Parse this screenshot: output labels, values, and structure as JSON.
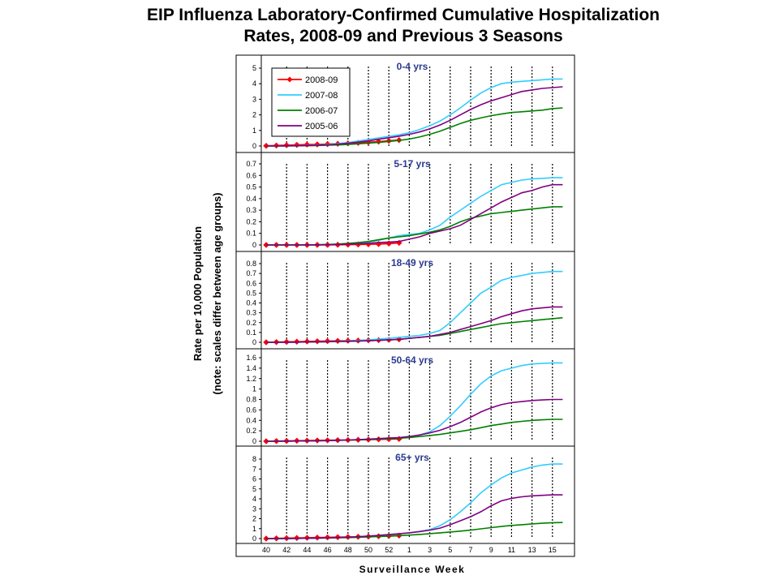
{
  "title_lines": [
    "EIP Influenza Laboratory-Confirmed Cumulative Hospitalization",
    "Rates, 2008-09 and Previous 3 Seasons"
  ],
  "chart_data": {
    "type": "line",
    "ylabel_lines": [
      "Rate per 10,000 Population",
      "(note: scales differ between age groups)"
    ],
    "xlabel": "Surveillance Week",
    "x_tick_labels": [
      "40",
      "42",
      "44",
      "46",
      "48",
      "50",
      "52",
      "1",
      "3",
      "5",
      "7",
      "9",
      "11",
      "13",
      "15"
    ],
    "weeks": [
      "40",
      "41",
      "42",
      "43",
      "44",
      "45",
      "46",
      "47",
      "48",
      "49",
      "50",
      "51",
      "52",
      "53",
      "1",
      "2",
      "3",
      "4",
      "5",
      "6",
      "7",
      "8",
      "9",
      "10",
      "11",
      "12",
      "13",
      "14",
      "15",
      "16"
    ],
    "legend": [
      {
        "name": "2008-09",
        "color": "#ff0000"
      },
      {
        "name": "2007-08",
        "color": "#33ccff"
      },
      {
        "name": "2006-07",
        "color": "#008000"
      },
      {
        "name": "2005-06",
        "color": "#800080"
      }
    ],
    "panels": [
      {
        "label": "0-4 yrs",
        "y_ticks": [
          "0",
          "1",
          "2",
          "3",
          "4",
          "5"
        ],
        "ylim": [
          0,
          5
        ],
        "series": [
          {
            "name": "2008-09",
            "values": [
              0.01,
              0.03,
              0.05,
              0.07,
              0.09,
              0.1,
              0.12,
              0.14,
              0.17,
              0.2,
              0.24,
              0.28,
              0.33,
              0.38
            ]
          },
          {
            "name": "2007-08",
            "values": [
              0,
              0,
              0.01,
              0.02,
              0.04,
              0.06,
              0.1,
              0.15,
              0.22,
              0.32,
              0.42,
              0.52,
              0.62,
              0.72,
              0.85,
              1.05,
              1.3,
              1.6,
              2.0,
              2.45,
              2.95,
              3.4,
              3.75,
              4.0,
              4.1,
              4.15,
              4.2,
              4.25,
              4.3,
              4.3
            ]
          },
          {
            "name": "2006-07",
            "values": [
              0,
              0,
              0,
              0.01,
              0.02,
              0.03,
              0.05,
              0.07,
              0.1,
              0.14,
              0.18,
              0.23,
              0.29,
              0.36,
              0.45,
              0.58,
              0.75,
              0.95,
              1.2,
              1.45,
              1.65,
              1.8,
              1.95,
              2.05,
              2.15,
              2.2,
              2.25,
              2.3,
              2.4,
              2.45
            ]
          },
          {
            "name": "2005-06",
            "values": [
              0,
              0,
              0.01,
              0.02,
              0.03,
              0.05,
              0.08,
              0.12,
              0.18,
              0.25,
              0.33,
              0.43,
              0.53,
              0.63,
              0.75,
              0.9,
              1.1,
              1.35,
              1.65,
              2.0,
              2.35,
              2.65,
              2.9,
              3.1,
              3.3,
              3.5,
              3.6,
              3.7,
              3.75,
              3.8
            ]
          }
        ]
      },
      {
        "label": "5-17 yrs",
        "y_ticks": [
          "0",
          "0.1",
          "0.2",
          "0.3",
          "0.4",
          "0.5",
          "0.6",
          "0.7"
        ],
        "ylim": [
          0,
          0.7
        ],
        "series": [
          {
            "name": "2008-09",
            "values": [
              0,
              0,
              0,
              0,
              0,
              0.001,
              0.001,
              0.002,
              0.003,
              0.004,
              0.006,
              0.008,
              0.012,
              0.018
            ]
          },
          {
            "name": "2007-08",
            "values": [
              0,
              0,
              0,
              0,
              0,
              0.002,
              0.004,
              0.007,
              0.011,
              0.016,
              0.025,
              0.04,
              0.06,
              0.08,
              0.09,
              0.1,
              0.13,
              0.17,
              0.24,
              0.3,
              0.36,
              0.42,
              0.47,
              0.52,
              0.54,
              0.56,
              0.57,
              0.575,
              0.58,
              0.58
            ]
          },
          {
            "name": "2006-07",
            "values": [
              0,
              0,
              0,
              0,
              0.001,
              0.002,
              0.004,
              0.008,
              0.013,
              0.02,
              0.03,
              0.045,
              0.06,
              0.07,
              0.08,
              0.095,
              0.11,
              0.13,
              0.16,
              0.2,
              0.23,
              0.25,
              0.27,
              0.28,
              0.29,
              0.3,
              0.31,
              0.32,
              0.33,
              0.33
            ]
          },
          {
            "name": "2005-06",
            "values": [
              0,
              0,
              0,
              0,
              0,
              0.001,
              0.002,
              0.004,
              0.007,
              0.01,
              0.015,
              0.02,
              0.025,
              0.03,
              0.05,
              0.07,
              0.1,
              0.12,
              0.14,
              0.17,
              0.22,
              0.27,
              0.32,
              0.37,
              0.41,
              0.45,
              0.47,
              0.5,
              0.52,
              0.52
            ]
          }
        ]
      },
      {
        "label": "18-49 yrs",
        "y_ticks": [
          "0",
          "0.1",
          "0.2",
          "0.3",
          "0.4",
          "0.5",
          "0.6",
          "0.7",
          "0.8"
        ],
        "ylim": [
          0,
          0.8
        ],
        "series": [
          {
            "name": "2008-09",
            "values": [
              0,
              0.002,
              0.004,
              0.006,
              0.008,
              0.01,
              0.012,
              0.014,
              0.016,
              0.018,
              0.02,
              0.022,
              0.025,
              0.03
            ]
          },
          {
            "name": "2007-08",
            "values": [
              0,
              0,
              0.001,
              0.002,
              0.003,
              0.005,
              0.007,
              0.01,
              0.014,
              0.019,
              0.025,
              0.032,
              0.04,
              0.05,
              0.06,
              0.07,
              0.09,
              0.12,
              0.2,
              0.3,
              0.4,
              0.5,
              0.56,
              0.63,
              0.66,
              0.68,
              0.7,
              0.71,
              0.72,
              0.72
            ]
          },
          {
            "name": "2006-07",
            "values": [
              0,
              0,
              0.001,
              0.002,
              0.003,
              0.004,
              0.006,
              0.008,
              0.01,
              0.013,
              0.016,
              0.02,
              0.025,
              0.03,
              0.04,
              0.05,
              0.06,
              0.07,
              0.09,
              0.11,
              0.13,
              0.15,
              0.17,
              0.19,
              0.2,
              0.21,
              0.22,
              0.23,
              0.24,
              0.25
            ]
          },
          {
            "name": "2005-06",
            "values": [
              0,
              0,
              0.001,
              0.002,
              0.003,
              0.004,
              0.006,
              0.008,
              0.01,
              0.013,
              0.016,
              0.02,
              0.025,
              0.03,
              0.04,
              0.05,
              0.06,
              0.08,
              0.1,
              0.13,
              0.16,
              0.19,
              0.22,
              0.26,
              0.29,
              0.32,
              0.34,
              0.35,
              0.36,
              0.36
            ]
          }
        ]
      },
      {
        "label": "50-64 yrs",
        "y_ticks": [
          "0",
          "0.2",
          "0.4",
          "0.6",
          "0.8",
          "1",
          "1.2",
          "1.4",
          "1.6"
        ],
        "ylim": [
          0,
          1.6
        ],
        "series": [
          {
            "name": "2008-09",
            "values": [
              0,
              0.003,
              0.006,
              0.009,
              0.012,
              0.015,
              0.018,
              0.021,
              0.024,
              0.028,
              0.032,
              0.036,
              0.04,
              0.045
            ]
          },
          {
            "name": "2007-08",
            "values": [
              0,
              0,
              0.002,
              0.004,
              0.006,
              0.009,
              0.013,
              0.018,
              0.024,
              0.031,
              0.04,
              0.05,
              0.06,
              0.07,
              0.09,
              0.12,
              0.18,
              0.3,
              0.48,
              0.68,
              0.9,
              1.1,
              1.25,
              1.35,
              1.4,
              1.45,
              1.48,
              1.49,
              1.5,
              1.5
            ]
          },
          {
            "name": "2006-07",
            "values": [
              0,
              0,
              0.002,
              0.004,
              0.006,
              0.009,
              0.012,
              0.016,
              0.021,
              0.027,
              0.033,
              0.04,
              0.048,
              0.057,
              0.07,
              0.09,
              0.11,
              0.13,
              0.16,
              0.19,
              0.22,
              0.26,
              0.3,
              0.33,
              0.36,
              0.38,
              0.4,
              0.41,
              0.42,
              0.42
            ]
          },
          {
            "name": "2005-06",
            "values": [
              0,
              0,
              0.002,
              0.004,
              0.006,
              0.009,
              0.013,
              0.018,
              0.024,
              0.031,
              0.04,
              0.05,
              0.06,
              0.07,
              0.09,
              0.12,
              0.16,
              0.21,
              0.28,
              0.36,
              0.46,
              0.56,
              0.64,
              0.7,
              0.74,
              0.76,
              0.78,
              0.79,
              0.8,
              0.8
            ]
          }
        ]
      },
      {
        "label": "65+ yrs",
        "y_ticks": [
          "0",
          "1",
          "2",
          "3",
          "4",
          "5",
          "6",
          "7",
          "8"
        ],
        "ylim": [
          0,
          8
        ],
        "series": [
          {
            "name": "2008-09",
            "values": [
              0,
              0.02,
              0.04,
              0.06,
              0.08,
              0.1,
              0.12,
              0.14,
              0.16,
              0.18,
              0.2,
              0.23,
              0.26,
              0.3
            ]
          },
          {
            "name": "2007-08",
            "values": [
              0,
              0,
              0.01,
              0.02,
              0.03,
              0.05,
              0.07,
              0.1,
              0.14,
              0.19,
              0.25,
              0.32,
              0.4,
              0.48,
              0.58,
              0.72,
              0.9,
              1.3,
              1.9,
              2.7,
              3.6,
              4.6,
              5.4,
              6.1,
              6.6,
              6.9,
              7.2,
              7.4,
              7.5,
              7.5
            ]
          },
          {
            "name": "2006-07",
            "values": [
              0,
              0,
              0.01,
              0.02,
              0.03,
              0.04,
              0.06,
              0.08,
              0.1,
              0.13,
              0.16,
              0.2,
              0.24,
              0.29,
              0.35,
              0.42,
              0.5,
              0.58,
              0.66,
              0.75,
              0.85,
              0.98,
              1.1,
              1.22,
              1.32,
              1.4,
              1.48,
              1.54,
              1.6,
              1.62
            ]
          },
          {
            "name": "2005-06",
            "values": [
              0,
              0,
              0.01,
              0.02,
              0.03,
              0.05,
              0.07,
              0.1,
              0.14,
              0.19,
              0.25,
              0.32,
              0.4,
              0.48,
              0.58,
              0.7,
              0.85,
              1.05,
              1.4,
              1.8,
              2.2,
              2.7,
              3.3,
              3.8,
              4.05,
              4.2,
              4.3,
              4.35,
              4.4,
              4.4
            ]
          }
        ]
      }
    ]
  }
}
